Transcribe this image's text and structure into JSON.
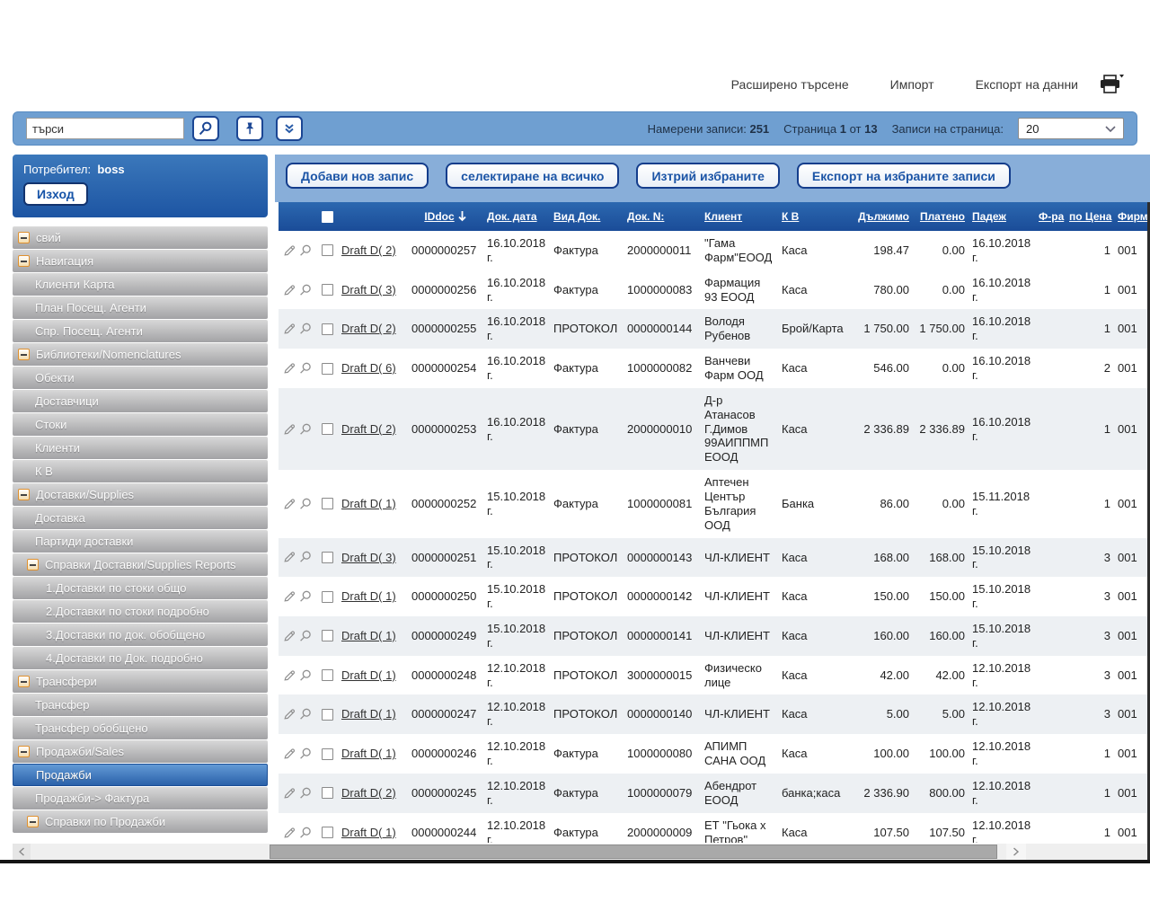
{
  "top_bar": {
    "links": [
      "Расширено търсене",
      "Импорт",
      "Експорт на данни"
    ]
  },
  "search": {
    "value": "търси",
    "found_label": "Намерени записи:",
    "found_count": "251",
    "page_label": "Страница",
    "page_current": "1",
    "of_label": "от",
    "page_total": "13",
    "per_page_label": "Записи на страница:",
    "per_page": "20"
  },
  "sidebar": {
    "user_label": "Потребител:",
    "user_name": "boss",
    "logout_label": "Изход",
    "items": [
      {
        "label": "свий",
        "level": 0,
        "group": true
      },
      {
        "label": "Навигация",
        "level": 0,
        "group": true
      },
      {
        "label": "Клиенти Карта",
        "level": 1,
        "group": false
      },
      {
        "label": "План Посещ. Агенти",
        "level": 1,
        "group": false
      },
      {
        "label": "Спр. Посещ. Агенти",
        "level": 1,
        "group": false
      },
      {
        "label": "Библиотеки/Nomenclatures",
        "level": 0,
        "group": true
      },
      {
        "label": "Обекти",
        "level": 1,
        "group": false
      },
      {
        "label": "Доставчици",
        "level": 1,
        "group": false
      },
      {
        "label": "Стоки",
        "level": 1,
        "group": false
      },
      {
        "label": "Клиенти",
        "level": 1,
        "group": false
      },
      {
        "label": "К В",
        "level": 1,
        "group": false
      },
      {
        "label": "Доставки/Supplies",
        "level": 0,
        "group": true
      },
      {
        "label": "Доставка",
        "level": 1,
        "group": false
      },
      {
        "label": "Партиди доставки",
        "level": 1,
        "group": false
      },
      {
        "label": "Справки Доставки/Supplies Reports",
        "level": 1,
        "group": true
      },
      {
        "label": "1.Доставки по стоки общо",
        "level": 2,
        "group": false
      },
      {
        "label": "2.Доставки по стоки подробно",
        "level": 2,
        "group": false
      },
      {
        "label": "3.Доставки по док. обобщено",
        "level": 2,
        "group": false
      },
      {
        "label": "4.Доставки по Док. подробно",
        "level": 2,
        "group": false
      },
      {
        "label": "Трансфери",
        "level": 0,
        "group": true
      },
      {
        "label": "Трансфер",
        "level": 1,
        "group": false
      },
      {
        "label": "Трансфер обобщено",
        "level": 1,
        "group": false
      },
      {
        "label": "Продажби/Sales",
        "level": 0,
        "group": true
      },
      {
        "label": "Продажби",
        "level": 1,
        "group": false,
        "selected": true
      },
      {
        "label": "Продажби-> Фактура",
        "level": 1,
        "group": false
      },
      {
        "label": "Справки по Продажби",
        "level": 1,
        "group": true
      }
    ]
  },
  "toolbar": {
    "buttons": [
      "Добави нов запис",
      "селектиране на всичко",
      "Изтрий избраните",
      "Експорт на избраните записи"
    ]
  },
  "table": {
    "headers": {
      "iddoc": "IDdoc",
      "date": "Док. дата",
      "vid": "Вид Док.",
      "dokn": "Док. N:",
      "klient": "Клиент",
      "kv": "К В",
      "dulzhimo": "Дължимо",
      "plateno": "Платено",
      "padezh": "Падеж",
      "fra": "Ф-ра",
      "po_cena": "по Цена",
      "firma": "Фирм"
    },
    "rows": [
      {
        "draft": "Draft D( 2)",
        "iddoc": "0000000257",
        "date": "16.10.2018 г.",
        "vid": "Фактура",
        "dokn": "2000000011",
        "klient": "\"Гама Фарм\"ЕООД",
        "kv": "Каса",
        "dulzhimo": "198.47",
        "plateno": "0.00",
        "padezh": "16.10.2018 г.",
        "fra": "",
        "po_cena": "1",
        "firma": "001"
      },
      {
        "draft": "Draft D( 3)",
        "iddoc": "0000000256",
        "date": "16.10.2018 г.",
        "vid": "Фактура",
        "dokn": "1000000083",
        "klient": "Фармация 93 ЕООД",
        "kv": "Каса",
        "dulzhimo": "780.00",
        "plateno": "0.00",
        "padezh": "16.10.2018 г.",
        "fra": "",
        "po_cena": "1",
        "firma": "001"
      },
      {
        "draft": "Draft D( 2)",
        "iddoc": "0000000255",
        "date": "16.10.2018 г.",
        "vid": "ПРОТОКОЛ",
        "dokn": "0000000144",
        "klient": "Володя Рубенов",
        "kv": "Брой/Карта",
        "dulzhimo": "1 750.00",
        "plateno": "1 750.00",
        "padezh": "16.10.2018 г.",
        "fra": "",
        "po_cena": "1",
        "firma": "001"
      },
      {
        "draft": "Draft D( 6)",
        "iddoc": "0000000254",
        "date": "16.10.2018 г.",
        "vid": "Фактура",
        "dokn": "1000000082",
        "klient": "Ванчеви Фарм ООД",
        "kv": "Каса",
        "dulzhimo": "546.00",
        "plateno": "0.00",
        "padezh": "16.10.2018 г.",
        "fra": "",
        "po_cena": "2",
        "firma": "001"
      },
      {
        "draft": "Draft D( 2)",
        "iddoc": "0000000253",
        "date": "16.10.2018 г.",
        "vid": "Фактура",
        "dokn": "2000000010",
        "klient": "Д-р Атанасов Г.Димов 99АИППМП ЕООД",
        "kv": "Каса",
        "dulzhimo": "2 336.89",
        "plateno": "2 336.89",
        "padezh": "16.10.2018 г.",
        "fra": "",
        "po_cena": "1",
        "firma": "001"
      },
      {
        "draft": "Draft D( 1)",
        "iddoc": "0000000252",
        "date": "15.10.2018 г.",
        "vid": "Фактура",
        "dokn": "1000000081",
        "klient": "Аптечен Център България ООД",
        "kv": "Банка",
        "dulzhimo": "86.00",
        "plateno": "0.00",
        "padezh": "15.11.2018 г.",
        "fra": "",
        "po_cena": "1",
        "firma": "001"
      },
      {
        "draft": "Draft D( 3)",
        "iddoc": "0000000251",
        "date": "15.10.2018 г.",
        "vid": "ПРОТОКОЛ",
        "dokn": "0000000143",
        "klient": "ЧЛ-КЛИЕНТ",
        "kv": "Каса",
        "dulzhimo": "168.00",
        "plateno": "168.00",
        "padezh": "15.10.2018 г.",
        "fra": "",
        "po_cena": "3",
        "firma": "001"
      },
      {
        "draft": "Draft D( 1)",
        "iddoc": "0000000250",
        "date": "15.10.2018 г.",
        "vid": "ПРОТОКОЛ",
        "dokn": "0000000142",
        "klient": "ЧЛ-КЛИЕНТ",
        "kv": "Каса",
        "dulzhimo": "150.00",
        "plateno": "150.00",
        "padezh": "15.10.2018 г.",
        "fra": "",
        "po_cena": "3",
        "firma": "001"
      },
      {
        "draft": "Draft D( 1)",
        "iddoc": "0000000249",
        "date": "15.10.2018 г.",
        "vid": "ПРОТОКОЛ",
        "dokn": "0000000141",
        "klient": "ЧЛ-КЛИЕНТ",
        "kv": "Каса",
        "dulzhimo": "160.00",
        "plateno": "160.00",
        "padezh": "15.10.2018 г.",
        "fra": "",
        "po_cena": "3",
        "firma": "001"
      },
      {
        "draft": "Draft D( 1)",
        "iddoc": "0000000248",
        "date": "12.10.2018 г.",
        "vid": "ПРОТОКОЛ",
        "dokn": "3000000015",
        "klient": "Физическо лице",
        "kv": "Каса",
        "dulzhimo": "42.00",
        "plateno": "42.00",
        "padezh": "12.10.2018 г.",
        "fra": "",
        "po_cena": "3",
        "firma": "001"
      },
      {
        "draft": "Draft D( 1)",
        "iddoc": "0000000247",
        "date": "12.10.2018 г.",
        "vid": "ПРОТОКОЛ",
        "dokn": "0000000140",
        "klient": "ЧЛ-КЛИЕНТ",
        "kv": "Каса",
        "dulzhimo": "5.00",
        "plateno": "5.00",
        "padezh": "12.10.2018 г.",
        "fra": "",
        "po_cena": "3",
        "firma": "001"
      },
      {
        "draft": "Draft D( 1)",
        "iddoc": "0000000246",
        "date": "12.10.2018 г.",
        "vid": "Фактура",
        "dokn": "1000000080",
        "klient": "АПИМП САНА ООД",
        "kv": "Каса",
        "dulzhimo": "100.00",
        "plateno": "100.00",
        "padezh": "12.10.2018 г.",
        "fra": "",
        "po_cena": "1",
        "firma": "001"
      },
      {
        "draft": "Draft D( 2)",
        "iddoc": "0000000245",
        "date": "12.10.2018 г.",
        "vid": "Фактура",
        "dokn": "1000000079",
        "klient": "Абендрот ЕООД",
        "kv": "банка;каса",
        "dulzhimo": "2 336.90",
        "plateno": "800.00",
        "padezh": "12.10.2018 г.",
        "fra": "",
        "po_cena": "1",
        "firma": "001"
      },
      {
        "draft": "Draft D( 1)",
        "iddoc": "0000000244",
        "date": "12.10.2018 г.",
        "vid": "Фактура",
        "dokn": "2000000009",
        "klient": "ЕТ \"Гьока х Петров\"",
        "kv": "Каса",
        "dulzhimo": "107.50",
        "plateno": "107.50",
        "padezh": "12.10.2018 г.",
        "fra": "",
        "po_cena": "1",
        "firma": "001"
      }
    ]
  }
}
